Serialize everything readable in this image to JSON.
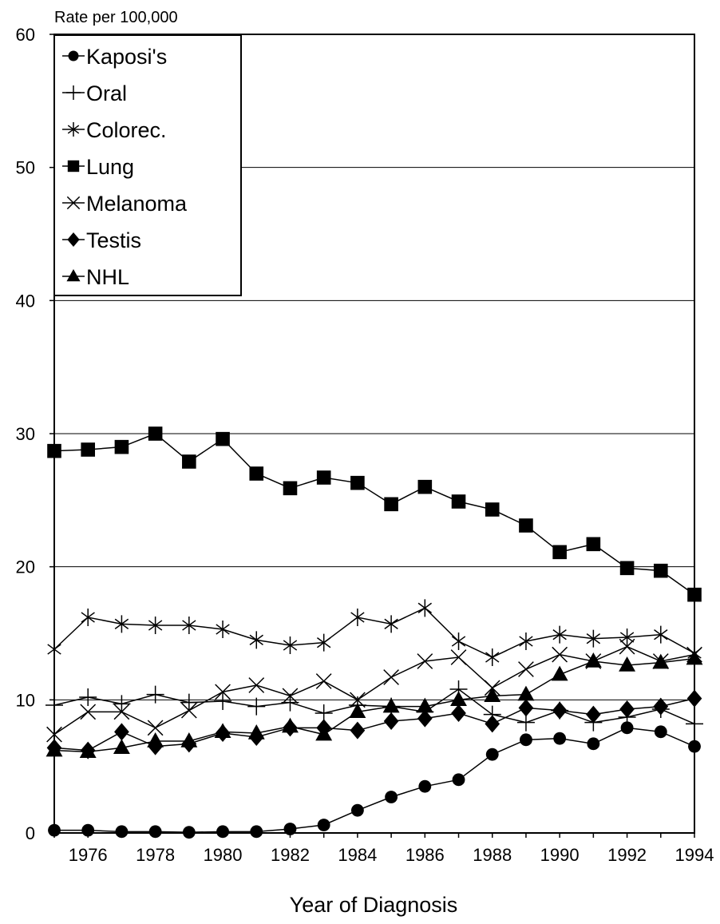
{
  "chart_data": {
    "type": "line",
    "title": "",
    "xlabel": "Year of Diagnosis",
    "ylabel": "Rate per 100,000",
    "xlim": [
      1975,
      1994
    ],
    "ylim": [
      0,
      60
    ],
    "yticks": [
      0,
      10,
      20,
      30,
      40,
      50,
      60
    ],
    "xtick_labels": [
      1976,
      1978,
      1980,
      1982,
      1984,
      1986,
      1988,
      1990,
      1992,
      1994
    ],
    "grid": "horizontal",
    "legend_position": "top-left",
    "x": [
      1975,
      1976,
      1977,
      1978,
      1979,
      1980,
      1981,
      1982,
      1983,
      1984,
      1985,
      1986,
      1987,
      1988,
      1989,
      1990,
      1991,
      1992,
      1993,
      1994
    ],
    "series": [
      {
        "name": "Kaposi's",
        "marker": "circle",
        "values": [
          0.2,
          0.2,
          0.1,
          0.1,
          0.05,
          0.1,
          0.1,
          0.3,
          0.6,
          1.7,
          2.7,
          3.5,
          4.0,
          5.9,
          7.0,
          7.1,
          6.7,
          7.9,
          7.6,
          6.5
        ]
      },
      {
        "name": "Oral",
        "marker": "plus",
        "values": [
          9.6,
          10.2,
          9.7,
          10.4,
          9.8,
          9.9,
          9.5,
          9.8,
          9.0,
          9.6,
          9.5,
          9.1,
          10.8,
          8.9,
          8.3,
          9.2,
          8.3,
          8.7,
          9.3,
          8.2
        ]
      },
      {
        "name": "Colorec.",
        "marker": "star",
        "values": [
          13.8,
          16.2,
          15.7,
          15.6,
          15.6,
          15.3,
          14.5,
          14.1,
          14.3,
          16.2,
          15.7,
          16.9,
          14.4,
          13.2,
          14.4,
          14.9,
          14.6,
          14.7,
          14.9,
          13.5
        ]
      },
      {
        "name": "Lung",
        "marker": "square",
        "values": [
          28.7,
          28.8,
          29.0,
          30.0,
          27.9,
          29.6,
          27.0,
          25.9,
          26.7,
          26.3,
          24.7,
          26.0,
          24.9,
          24.3,
          23.1,
          21.1,
          21.7,
          19.9,
          19.7,
          17.9
        ]
      },
      {
        "name": "Melanoma",
        "marker": "x",
        "values": [
          7.4,
          9.1,
          9.1,
          7.9,
          9.2,
          10.6,
          11.1,
          10.3,
          11.4,
          10.0,
          11.7,
          12.9,
          13.2,
          10.9,
          12.3,
          13.4,
          12.9,
          14.0,
          12.9,
          13.4
        ]
      },
      {
        "name": "Testis",
        "marker": "diamond",
        "values": [
          6.4,
          6.2,
          7.6,
          6.5,
          6.7,
          7.5,
          7.2,
          7.9,
          7.9,
          7.7,
          8.4,
          8.6,
          9.0,
          8.2,
          9.4,
          9.2,
          8.9,
          9.3,
          9.5,
          10.1
        ]
      },
      {
        "name": "NHL",
        "marker": "triangle",
        "values": [
          6.2,
          6.1,
          6.4,
          6.9,
          6.9,
          7.6,
          7.5,
          8.0,
          7.4,
          9.1,
          9.5,
          9.5,
          10.0,
          10.3,
          10.4,
          11.9,
          12.9,
          12.6,
          12.8,
          13.1
        ]
      }
    ]
  }
}
